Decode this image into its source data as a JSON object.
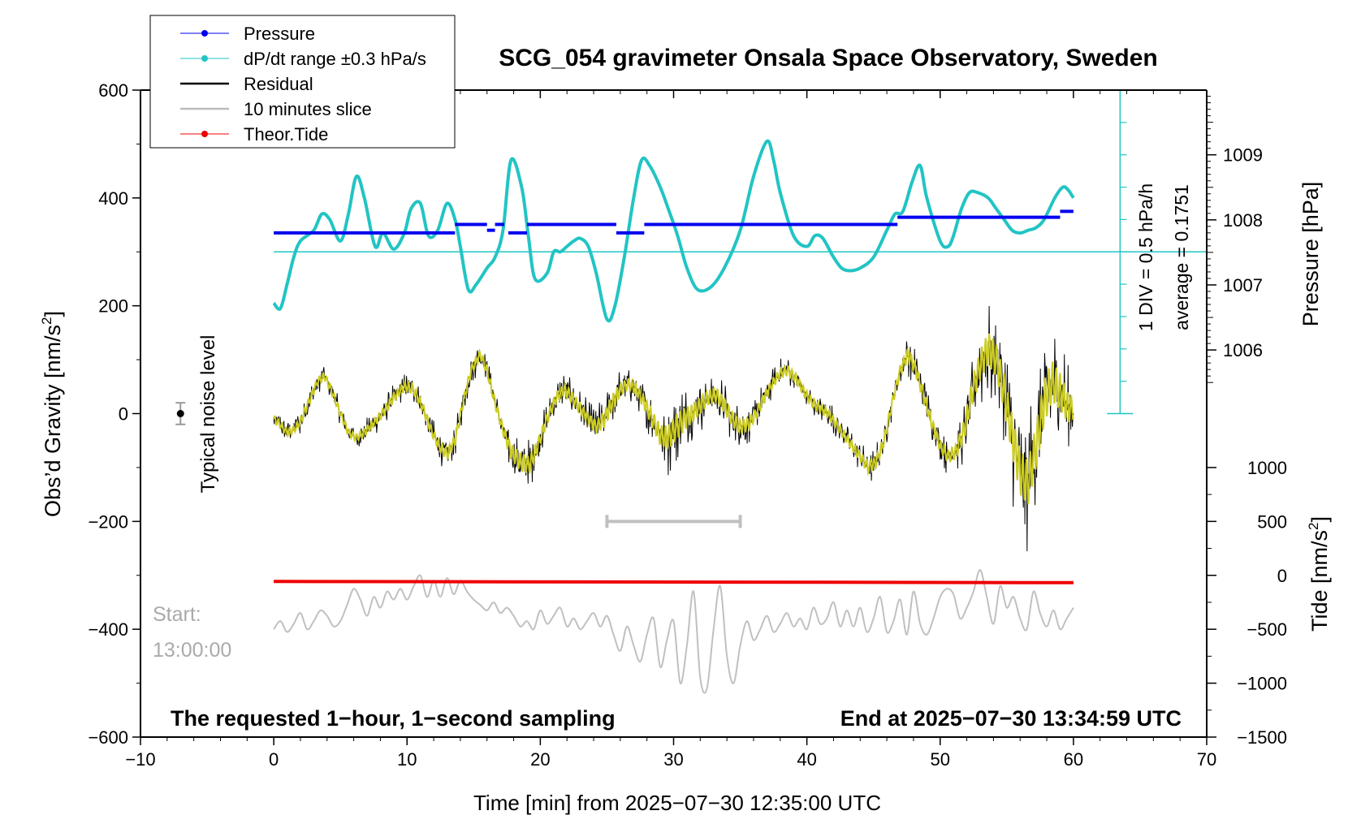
{
  "chart_data": {
    "type": "line",
    "title": "SCG_054 gravimeter Onsala Space Observatory, Sweden",
    "xlabel": "Time [min] from 2025−07−30 12:35:00 UTC",
    "ylabel_left": "Obs’d Gravity [nm/s",
    "ylabel_left_sup": "2",
    "ylabel_left_tail": "]",
    "ylabel_right_pressure": "Pressure [hPa]",
    "ylabel_right_tide": "Tide [nm/s",
    "ylabel_right_tide_sup": "2",
    "ylabel_right_tide_tail": "]",
    "xlim": [
      -10,
      70
    ],
    "ylim": [
      -600,
      600
    ],
    "x_ticks": [
      {
        "v": -10,
        "label": "−10"
      },
      {
        "v": 0,
        "label": "0"
      },
      {
        "v": 10,
        "label": "10"
      },
      {
        "v": 20,
        "label": "20"
      },
      {
        "v": 30,
        "label": "30"
      },
      {
        "v": 40,
        "label": "40"
      },
      {
        "v": 50,
        "label": "50"
      },
      {
        "v": 60,
        "label": "60"
      },
      {
        "v": 70,
        "label": "70"
      }
    ],
    "y_ticks_left": [
      {
        "v": -600,
        "label": "−600"
      },
      {
        "v": -400,
        "label": "−400"
      },
      {
        "v": -200,
        "label": "−200"
      },
      {
        "v": 0,
        "label": "0"
      },
      {
        "v": 200,
        "label": "200"
      },
      {
        "v": 400,
        "label": "400"
      },
      {
        "v": 600,
        "label": "600"
      }
    ],
    "pressure_axis": {
      "mapping": {
        "p1": 1006,
        "g1": 118,
        "p2": 1009,
        "g2": 480
      },
      "ticks": [
        {
          "v": 1006,
          "label": "1006"
        },
        {
          "v": 1007,
          "label": "1007"
        },
        {
          "v": 1008,
          "label": "1008"
        },
        {
          "v": 1009,
          "label": "1009"
        }
      ],
      "range": [
        1005.5,
        1009.9
      ]
    },
    "tide_axis": {
      "mapping": {
        "t1": 0,
        "g1": -300,
        "t2": 1000,
        "g2": -100
      },
      "ticks": [
        {
          "v": -1500,
          "label": "−1500"
        },
        {
          "v": -1000,
          "label": "−1000"
        },
        {
          "v": -500,
          "label": "−500"
        },
        {
          "v": 0,
          "label": "0"
        },
        {
          "v": 500,
          "label": "500"
        },
        {
          "v": 1000,
          "label": "1000"
        }
      ]
    },
    "legend": [
      {
        "name": "Pressure",
        "color": "#0000ee",
        "marker": true,
        "width": 1
      },
      {
        "name": "dP/dt range ±0.3 hPa/s",
        "color": "#22c4c4",
        "marker": true,
        "width": 1
      },
      {
        "name": "Residual",
        "color": "#000000",
        "marker": false,
        "width": 2
      },
      {
        "name": "10 minutes slice",
        "color": "#bbbbbb",
        "marker": false,
        "width": 2
      },
      {
        "name": "Theor.Tide",
        "color": "#ee0000",
        "marker": true,
        "width": 1
      }
    ],
    "annotations": {
      "noise_label": "Typical noise level",
      "noise_point": {
        "x": -7,
        "y": 0,
        "err": 20
      },
      "div_label": "1 DIV = 0.5 hPa/h",
      "average_label": "average = 0.1751",
      "start_label": "Start:",
      "start_time": "13:00:00",
      "bottom_left": "The requested 1−hour, 1−second sampling",
      "bottom_right": "End at 2025−07−30 13:34:59 UTC",
      "slice_bar": {
        "x0": 25,
        "x1": 35,
        "y": -200
      }
    },
    "colors": {
      "pressure": "#0000ee",
      "dpdt": "#22c4c4",
      "residual": "#000000",
      "smooth": "#cccc22",
      "slice": "#c0c0c0",
      "tide": "#ee0000"
    },
    "series": {
      "dpdt": {
        "name": "dP/dt range ±0.3 hPa/s",
        "reference_level": 300,
        "x": [
          0,
          0.5,
          1,
          1.5,
          2,
          3,
          3.6,
          4.2,
          5,
          5.6,
          6.2,
          6.8,
          7.6,
          8.2,
          9,
          9.8,
          10.3,
          11,
          11.6,
          12.3,
          13,
          13.6,
          14,
          14.6,
          15.2,
          16,
          16.6,
          17.2,
          17.8,
          18.6,
          19.1,
          19.6,
          20.5,
          21,
          21.5,
          22,
          22.5,
          23,
          23.6,
          24.2,
          25,
          25.6,
          26.3,
          27,
          27.6,
          28.2,
          29,
          29.6,
          30.3,
          31,
          31.8,
          32.8,
          33.8,
          35,
          36,
          37,
          37.5,
          38,
          39,
          40,
          40.6,
          41.2,
          42,
          42.6,
          43.2,
          44,
          45,
          46,
          46.6,
          47.2,
          47.9,
          48.5,
          49,
          50,
          50.6,
          51,
          51.6,
          52.2,
          52.8,
          53.6,
          54.2,
          54.8,
          55.4,
          56,
          56.6,
          57.2,
          57.8,
          58.6,
          59.2,
          59.6,
          60
        ],
        "y": [
          205,
          195,
          240,
          290,
          320,
          340,
          370,
          360,
          320,
          370,
          440,
          400,
          310,
          335,
          305,
          335,
          380,
          390,
          330,
          340,
          390,
          360,
          310,
          230,
          240,
          270,
          290,
          340,
          470,
          420,
          330,
          250,
          260,
          300,
          300,
          310,
          320,
          325,
          310,
          260,
          175,
          200,
          290,
          400,
          470,
          460,
          420,
          380,
          330,
          270,
          230,
          235,
          270,
          340,
          440,
          505,
          470,
          410,
          330,
          310,
          330,
          325,
          290,
          270,
          265,
          270,
          290,
          340,
          370,
          375,
          430,
          460,
          400,
          320,
          310,
          330,
          380,
          410,
          410,
          400,
          380,
          360,
          340,
          335,
          340,
          345,
          360,
          400,
          420,
          415,
          400
        ]
      },
      "pressure": {
        "name": "Pressure",
        "unit": "hPa",
        "segments": [
          {
            "x0": 0,
            "x1": 13.6,
            "p": 1007.8
          },
          {
            "x0": 13.6,
            "x1": 16,
            "p": 1007.93
          },
          {
            "x0": 16,
            "x1": 16.6,
            "p": 1007.84
          },
          {
            "x0": 16.6,
            "x1": 17.3,
            "p": 1007.93
          },
          {
            "x0": 17.6,
            "x1": 19,
            "p": 1007.8
          },
          {
            "x0": 19,
            "x1": 25.7,
            "p": 1007.93
          },
          {
            "x0": 25.7,
            "x1": 27.8,
            "p": 1007.8
          },
          {
            "x0": 27.8,
            "x1": 46.8,
            "p": 1007.93
          },
          {
            "x0": 46.8,
            "x1": 59,
            "p": 1008.04
          },
          {
            "x0": 59,
            "x1": 60,
            "p": 1008.13
          }
        ]
      },
      "residual": {
        "name": "Residual",
        "x": [
          0,
          0.5,
          1,
          1.5,
          2,
          2.6,
          3.3,
          3.8,
          4.3,
          5,
          5.6,
          6.2,
          6.8,
          7.6,
          8.3,
          9,
          9.8,
          10.5,
          11.2,
          11.8,
          12.4,
          13,
          13.6,
          14.2,
          14.8,
          15.5,
          16,
          16.6,
          17.2,
          17.8,
          18.5,
          19.2,
          19.8,
          20.5,
          21.2,
          21.8,
          22.4,
          23,
          23.6,
          24.2,
          24.8,
          25.4,
          26,
          26.6,
          27.2,
          27.8,
          28.4,
          29,
          29.6,
          30.2,
          30.8,
          31.4,
          32,
          32.6,
          33.2,
          33.8,
          34.4,
          35,
          35.6,
          36.2,
          36.8,
          37.4,
          38,
          38.6,
          39.2,
          39.8,
          40.4,
          41,
          41.6,
          42.2,
          42.8,
          43.4,
          44,
          44.6,
          45.2,
          45.8,
          46.4,
          47,
          47.6,
          48.2,
          48.8,
          49.4,
          50,
          50.6,
          51.2,
          51.8,
          52.4,
          53,
          53.6,
          54.2,
          54.8,
          55.4,
          56,
          56.6,
          57.2,
          57.8,
          58.4,
          59,
          59.6,
          60
        ],
        "y": [
          -10,
          -20,
          -35,
          -30,
          -15,
          20,
          60,
          70,
          45,
          0,
          -35,
          -45,
          -35,
          -15,
          5,
          30,
          50,
          45,
          10,
          -30,
          -60,
          -75,
          -50,
          20,
          80,
          110,
          80,
          20,
          -30,
          -70,
          -90,
          -95,
          -60,
          -10,
          30,
          45,
          30,
          10,
          -10,
          -25,
          -10,
          20,
          45,
          55,
          45,
          20,
          -10,
          -40,
          -45,
          -25,
          -10,
          0,
          15,
          30,
          35,
          15,
          -10,
          -25,
          -20,
          0,
          30,
          55,
          75,
          80,
          65,
          40,
          20,
          10,
          0,
          -20,
          -40,
          -60,
          -80,
          -100,
          -90,
          -50,
          20,
          80,
          110,
          80,
          30,
          -20,
          -60,
          -80,
          -70,
          -30,
          40,
          90,
          120,
          100,
          40,
          -40,
          -110,
          -130,
          -60,
          20,
          60,
          40,
          10,
          10
        ],
        "noise_amplitude": [
          20,
          20,
          20,
          20,
          22,
          22,
          20,
          20,
          20,
          20,
          20,
          20,
          22,
          22,
          25,
          25,
          25,
          25,
          25,
          25,
          28,
          30,
          28,
          25,
          25,
          25,
          25,
          25,
          30,
          40,
          50,
          45,
          35,
          30,
          30,
          30,
          30,
          30,
          30,
          35,
          45,
          45,
          35,
          30,
          30,
          35,
          45,
          55,
          65,
          70,
          60,
          50,
          45,
          40,
          40,
          40,
          40,
          40,
          35,
          30,
          30,
          25,
          25,
          25,
          25,
          25,
          25,
          25,
          25,
          25,
          25,
          25,
          25,
          30,
          30,
          30,
          25,
          30,
          35,
          35,
          35,
          30,
          30,
          35,
          40,
          55,
          70,
          80,
          90,
          90,
          100,
          110,
          120,
          120,
          120,
          120,
          110,
          100,
          80,
          60
        ]
      },
      "slice": {
        "name": "10 minutes slice",
        "x": [
          0,
          0.5,
          1,
          1.5,
          2,
          2.5,
          3,
          3.5,
          4,
          4.5,
          5,
          5.5,
          6,
          6.5,
          7,
          7.5,
          8,
          8.5,
          9,
          9.5,
          10,
          10.5,
          11,
          11.5,
          12,
          12.5,
          13,
          13.5,
          14,
          14.5,
          15,
          15.5,
          16,
          16.5,
          17,
          17.5,
          18,
          18.5,
          19,
          19.5,
          20,
          20.5,
          21,
          21.5,
          22,
          22.5,
          23,
          23.5,
          24,
          24.5,
          25,
          25.5,
          26,
          26.5,
          27,
          27.5,
          28,
          28.5,
          29,
          29.5,
          30,
          30.5,
          31,
          31.5,
          32,
          32.5,
          33,
          33.5,
          34,
          34.5,
          35,
          35.5,
          36,
          36.5,
          37,
          37.5,
          38,
          38.5,
          39,
          39.5,
          40,
          40.5,
          41,
          41.5,
          42,
          42.5,
          43,
          43.5,
          44,
          44.5,
          45,
          45.5,
          46,
          46.5,
          47,
          47.5,
          48,
          48.5,
          49,
          49.5,
          50,
          50.5,
          51,
          51.5,
          52,
          52.5,
          53,
          53.5,
          54,
          54.5,
          55,
          55.5,
          56,
          56.5,
          57,
          57.5,
          58,
          58.5,
          59,
          59.5,
          60
        ],
        "y": [
          -400,
          -385,
          -405,
          -390,
          -370,
          -400,
          -385,
          -365,
          -375,
          -395,
          -385,
          -355,
          -325,
          -345,
          -375,
          -340,
          -360,
          -330,
          -345,
          -325,
          -345,
          -320,
          -300,
          -340,
          -310,
          -340,
          -305,
          -335,
          -310,
          -330,
          -345,
          -355,
          -365,
          -350,
          -370,
          -360,
          -375,
          -395,
          -385,
          -400,
          -365,
          -390,
          -375,
          -360,
          -395,
          -380,
          -400,
          -385,
          -370,
          -395,
          -375,
          -410,
          -440,
          -395,
          -430,
          -460,
          -410,
          -380,
          -470,
          -420,
          -385,
          -500,
          -430,
          -330,
          -490,
          -510,
          -400,
          -320,
          -450,
          -500,
          -430,
          -385,
          -420,
          -400,
          -375,
          -405,
          -390,
          -370,
          -395,
          -380,
          -400,
          -360,
          -390,
          -380,
          -350,
          -395,
          -365,
          -395,
          -360,
          -405,
          -380,
          -340,
          -405,
          -385,
          -345,
          -410,
          -330,
          -390,
          -410,
          -380,
          -340,
          -325,
          -335,
          -380,
          -360,
          -330,
          -290,
          -340,
          -390,
          -320,
          -360,
          -340,
          -380,
          -400,
          -330,
          -370,
          -395,
          -365,
          -400,
          -380,
          -360
        ]
      },
      "tide": {
        "name": "Theor.Tide",
        "unit": "nm/s2",
        "x": [
          0,
          30,
          60
        ],
        "t": [
          -57,
          -62,
          -68
        ]
      }
    }
  }
}
